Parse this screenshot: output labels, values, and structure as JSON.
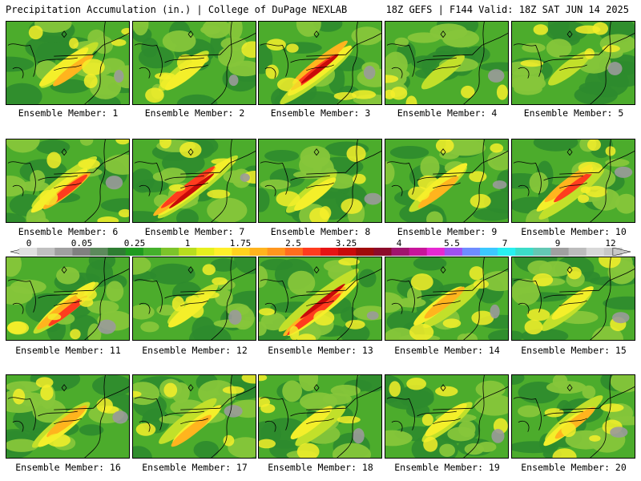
{
  "header": {
    "left": "Precipitation Accumulation (in.) | College of DuPage NEXLAB",
    "right": "18Z GEFS | F144 Valid: 18Z SAT JUN 14 2025"
  },
  "panels": [
    {
      "label": "Ensemble Member: 1",
      "intensity": 2
    },
    {
      "label": "Ensemble Member: 2",
      "intensity": 1
    },
    {
      "label": "Ensemble Member: 3",
      "intensity": 4
    },
    {
      "label": "Ensemble Member: 4",
      "intensity": 0
    },
    {
      "label": "Ensemble Member: 5",
      "intensity": 0
    },
    {
      "label": "Ensemble Member: 6",
      "intensity": 3
    },
    {
      "label": "Ensemble Member: 7",
      "intensity": 5
    },
    {
      "label": "Ensemble Member: 8",
      "intensity": 1
    },
    {
      "label": "Ensemble Member: 9",
      "intensity": 2
    },
    {
      "label": "Ensemble Member: 10",
      "intensity": 3
    },
    {
      "label": "Ensemble Member: 11",
      "intensity": 3
    },
    {
      "label": "Ensemble Member: 12",
      "intensity": 1
    },
    {
      "label": "Ensemble Member: 13",
      "intensity": 5
    },
    {
      "label": "Ensemble Member: 14",
      "intensity": 2
    },
    {
      "label": "Ensemble Member: 15",
      "intensity": 1
    },
    {
      "label": "Ensemble Member: 16",
      "intensity": 2
    },
    {
      "label": "Ensemble Member: 17",
      "intensity": 2
    },
    {
      "label": "Ensemble Member: 18",
      "intensity": 1
    },
    {
      "label": "Ensemble Member: 19",
      "intensity": 1
    },
    {
      "label": "Ensemble Member: 20",
      "intensity": 2
    }
  ],
  "legend": {
    "labels": [
      "0",
      "0.05",
      "0.25",
      "1",
      "1.75",
      "2.5",
      "3.25",
      "4",
      "5.5",
      "7",
      "9",
      "12"
    ],
    "colors": [
      "#e0e0e0",
      "#c0c0c0",
      "#a0a0a0",
      "#808080",
      "#5c8a5c",
      "#2e7d32",
      "#1f9a1f",
      "#44b02c",
      "#7cc42a",
      "#b8dd1e",
      "#e6f01e",
      "#fff02a",
      "#ffd21e",
      "#ffb41e",
      "#ff961e",
      "#ff6e1e",
      "#ff3c1e",
      "#e61414",
      "#c80a0a",
      "#a00a0a",
      "#8c0a2a",
      "#a0146e",
      "#c8149a",
      "#e628d2",
      "#a050f0",
      "#6e8cff",
      "#3cc8ff",
      "#28f0f0",
      "#3cdcc8",
      "#64c8b4",
      "#a0a0a0",
      "#bcbcbc",
      "#d8d8d8",
      "#c8c8c8"
    ]
  },
  "map_colors": {
    "dark_green": "#2e8b2e",
    "green": "#4cac2c",
    "light_green": "#86c63a",
    "yellow_green": "#c2e02a",
    "yellow": "#f4ef2a",
    "orange": "#ffb41e",
    "red": "#ff3c1e",
    "dark_red": "#c80a0a",
    "gray": "#9a9a9a",
    "outline": "#000000"
  }
}
